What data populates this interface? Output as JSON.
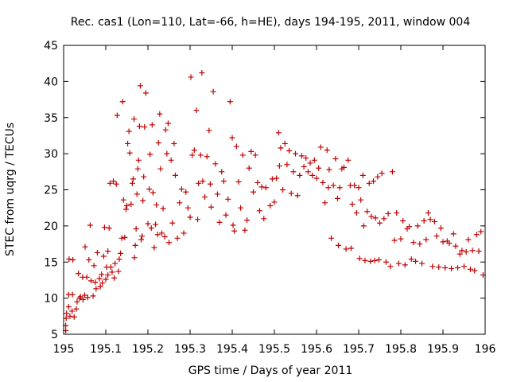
{
  "chart_data": {
    "type": "scatter",
    "title": "Rec. cas1 (Lon=110, Lat=-66, h=HE), days 194-195, 2011, window 004",
    "xlabel": "GPS time / Days of year 2011",
    "ylabel": "STEC from uqrg / TECUs",
    "xlim": [
      195,
      196
    ],
    "ylim": [
      5,
      45
    ],
    "xticks": [
      195,
      195.1,
      195.2,
      195.3,
      195.4,
      195.5,
      195.6,
      195.7,
      195.8,
      195.9,
      196
    ],
    "xtick_labels": [
      "195",
      "195.1",
      "195.2",
      "195.3",
      "195.4",
      "195.5",
      "195.6",
      "195.7",
      "195.8",
      "195.9",
      "196"
    ],
    "yticks": [
      5,
      10,
      15,
      20,
      25,
      30,
      35,
      40,
      45
    ],
    "ytick_labels": [
      "5",
      "10",
      "15",
      "20",
      "25",
      "30",
      "35",
      "40",
      "45"
    ],
    "marker_color": "#c00000",
    "series": [
      {
        "name": "STEC",
        "marker": "plus",
        "points": [
          [
            195.005,
            5.5
          ],
          [
            195.005,
            6.2
          ],
          [
            195.006,
            7.2
          ],
          [
            195.007,
            7.9
          ],
          [
            195.012,
            8.8
          ],
          [
            195.012,
            10.5
          ],
          [
            195.013,
            15.4
          ],
          [
            195.015,
            7.5
          ],
          [
            195.02,
            8.2
          ],
          [
            195.021,
            10.5
          ],
          [
            195.022,
            15.3
          ],
          [
            195.025,
            7.4
          ],
          [
            195.03,
            8.5
          ],
          [
            195.032,
            9.5
          ],
          [
            195.035,
            13.4
          ],
          [
            195.038,
            10.0
          ],
          [
            195.04,
            10.2
          ],
          [
            195.045,
            12.9
          ],
          [
            195.046,
            9.8
          ],
          [
            195.05,
            10.4
          ],
          [
            195.051,
            17.1
          ],
          [
            195.055,
            12.9
          ],
          [
            195.057,
            10.1
          ],
          [
            195.06,
            15.3
          ],
          [
            195.063,
            20.1
          ],
          [
            195.065,
            12.4
          ],
          [
            195.07,
            10.3
          ],
          [
            195.072,
            14.5
          ],
          [
            195.075,
            12.2
          ],
          [
            195.077,
            11.3
          ],
          [
            195.08,
            16.3
          ],
          [
            195.085,
            12.7
          ],
          [
            195.087,
            11.6
          ],
          [
            195.09,
            13.3
          ],
          [
            195.092,
            12.1
          ],
          [
            195.095,
            15.8
          ],
          [
            195.097,
            19.8
          ],
          [
            195.1,
            12.6
          ],
          [
            195.102,
            14.3
          ],
          [
            195.105,
            16.5
          ],
          [
            195.105,
            13.2
          ],
          [
            195.108,
            19.7
          ],
          [
            195.11,
            25.9
          ],
          [
            195.112,
            14.3
          ],
          [
            195.115,
            13.6
          ],
          [
            195.118,
            26.2
          ],
          [
            195.12,
            12.8
          ],
          [
            195.122,
            14.8
          ],
          [
            195.125,
            25.8
          ],
          [
            195.127,
            35.3
          ],
          [
            195.13,
            13.7
          ],
          [
            195.132,
            15.4
          ],
          [
            195.135,
            16.2
          ],
          [
            195.138,
            18.3
          ],
          [
            195.14,
            37.2
          ],
          [
            195.142,
            23.6
          ],
          [
            195.145,
            18.4
          ],
          [
            195.148,
            22.3
          ],
          [
            195.15,
            22.8
          ],
          [
            195.152,
            31.4
          ],
          [
            195.155,
            33.1
          ],
          [
            195.157,
            30.1
          ],
          [
            195.16,
            23.0
          ],
          [
            195.163,
            25.9
          ],
          [
            195.165,
            26.5
          ],
          [
            195.167,
            34.8
          ],
          [
            195.168,
            15.6
          ],
          [
            195.17,
            17.3
          ],
          [
            195.172,
            19.6
          ],
          [
            195.174,
            24.4
          ],
          [
            195.176,
            27.9
          ],
          [
            195.178,
            29.1
          ],
          [
            195.18,
            33.8
          ],
          [
            195.182,
            39.4
          ],
          [
            195.184,
            18.1
          ],
          [
            195.186,
            18.6
          ],
          [
            195.188,
            23.5
          ],
          [
            195.19,
            26.8
          ],
          [
            195.192,
            33.7
          ],
          [
            195.195,
            38.4
          ],
          [
            195.2,
            20.3
          ],
          [
            195.203,
            25.1
          ],
          [
            195.205,
            29.9
          ],
          [
            195.208,
            19.7
          ],
          [
            195.21,
            34.0
          ],
          [
            195.212,
            24.6
          ],
          [
            195.215,
            17.0
          ],
          [
            195.218,
            20.2
          ],
          [
            195.22,
            22.9
          ],
          [
            195.223,
            18.8
          ],
          [
            195.225,
            31.5
          ],
          [
            195.228,
            35.5
          ],
          [
            195.23,
            27.9
          ],
          [
            195.233,
            19.0
          ],
          [
            195.236,
            22.4
          ],
          [
            195.24,
            18.5
          ],
          [
            195.242,
            33.3
          ],
          [
            195.245,
            30.0
          ],
          [
            195.248,
            34.2
          ],
          [
            195.25,
            17.7
          ],
          [
            195.255,
            29.1
          ],
          [
            195.258,
            20.4
          ],
          [
            195.262,
            31.4
          ],
          [
            195.265,
            27.0
          ],
          [
            195.27,
            18.3
          ],
          [
            195.275,
            23.2
          ],
          [
            195.28,
            25.1
          ],
          [
            195.285,
            19.0
          ],
          [
            195.29,
            24.7
          ],
          [
            195.295,
            22.5
          ],
          [
            195.3,
            21.2
          ],
          [
            195.302,
            40.6
          ],
          [
            195.305,
            29.8
          ],
          [
            195.31,
            30.5
          ],
          [
            195.315,
            36.0
          ],
          [
            195.318,
            20.9
          ],
          [
            195.32,
            25.9
          ],
          [
            195.325,
            29.8
          ],
          [
            195.328,
            41.2
          ],
          [
            195.33,
            26.2
          ],
          [
            195.335,
            24.0
          ],
          [
            195.34,
            29.6
          ],
          [
            195.345,
            33.2
          ],
          [
            195.348,
            25.8
          ],
          [
            195.35,
            22.6
          ],
          [
            195.355,
            38.6
          ],
          [
            195.36,
            28.6
          ],
          [
            195.365,
            24.4
          ],
          [
            195.37,
            20.5
          ],
          [
            195.375,
            27.5
          ],
          [
            195.38,
            26.2
          ],
          [
            195.385,
            21.5
          ],
          [
            195.39,
            23.7
          ],
          [
            195.395,
            37.2
          ],
          [
            195.4,
            32.2
          ],
          [
            195.402,
            20.1
          ],
          [
            195.405,
            19.3
          ],
          [
            195.41,
            31.0
          ],
          [
            195.415,
            26.1
          ],
          [
            195.42,
            22.5
          ],
          [
            195.425,
            29.8
          ],
          [
            195.43,
            19.4
          ],
          [
            195.435,
            20.8
          ],
          [
            195.44,
            28.0
          ],
          [
            195.445,
            30.3
          ],
          [
            195.45,
            24.7
          ],
          [
            195.455,
            29.8
          ],
          [
            195.46,
            26.0
          ],
          [
            195.465,
            22.1
          ],
          [
            195.47,
            25.4
          ],
          [
            195.475,
            21.0
          ],
          [
            195.48,
            25.3
          ],
          [
            195.49,
            22.8
          ],
          [
            195.495,
            26.5
          ],
          [
            195.5,
            23.3
          ],
          [
            195.505,
            26.6
          ],
          [
            195.51,
            32.9
          ],
          [
            195.512,
            28.3
          ],
          [
            195.515,
            30.8
          ],
          [
            195.52,
            25.0
          ],
          [
            195.525,
            31.4
          ],
          [
            195.53,
            28.5
          ],
          [
            195.535,
            30.4
          ],
          [
            195.54,
            24.5
          ],
          [
            195.545,
            27.5
          ],
          [
            195.55,
            30.0
          ],
          [
            195.555,
            24.2
          ],
          [
            195.56,
            27.0
          ],
          [
            195.565,
            29.7
          ],
          [
            195.57,
            28.2
          ],
          [
            195.575,
            29.4
          ],
          [
            195.58,
            27.5
          ],
          [
            195.585,
            28.7
          ],
          [
            195.59,
            27.0
          ],
          [
            195.595,
            29.1
          ],
          [
            195.6,
            26.6
          ],
          [
            195.605,
            28.0
          ],
          [
            195.61,
            30.9
          ],
          [
            195.615,
            26.0
          ],
          [
            195.62,
            23.2
          ],
          [
            195.625,
            30.5
          ],
          [
            195.628,
            25.3
          ],
          [
            195.63,
            27.8
          ],
          [
            195.635,
            18.3
          ],
          [
            195.64,
            25.6
          ],
          [
            195.645,
            29.3
          ],
          [
            195.65,
            23.8
          ],
          [
            195.652,
            17.3
          ],
          [
            195.655,
            25.3
          ],
          [
            195.66,
            27.9
          ],
          [
            195.665,
            28.1
          ],
          [
            195.67,
            16.8
          ],
          [
            195.675,
            29.1
          ],
          [
            195.68,
            25.6
          ],
          [
            195.682,
            16.9
          ],
          [
            195.685,
            23.0
          ],
          [
            195.69,
            25.6
          ],
          [
            195.695,
            21.8
          ],
          [
            195.7,
            25.3
          ],
          [
            195.702,
            15.5
          ],
          [
            195.705,
            23.6
          ],
          [
            195.71,
            27.0
          ],
          [
            195.712,
            20.0
          ],
          [
            195.715,
            15.2
          ],
          [
            195.72,
            22.0
          ],
          [
            195.725,
            25.9
          ],
          [
            195.728,
            15.1
          ],
          [
            195.73,
            21.3
          ],
          [
            195.735,
            26.2
          ],
          [
            195.738,
            15.2
          ],
          [
            195.74,
            21.1
          ],
          [
            195.745,
            26.8
          ],
          [
            195.748,
            15.3
          ],
          [
            195.75,
            20.4
          ],
          [
            195.755,
            27.3
          ],
          [
            195.76,
            21.0
          ],
          [
            195.765,
            15.0
          ],
          [
            195.77,
            21.7
          ],
          [
            195.775,
            14.4
          ],
          [
            195.78,
            27.5
          ],
          [
            195.785,
            18.0
          ],
          [
            195.79,
            21.8
          ],
          [
            195.795,
            14.8
          ],
          [
            195.8,
            18.2
          ],
          [
            195.805,
            20.7
          ],
          [
            195.81,
            14.6
          ],
          [
            195.815,
            19.6
          ],
          [
            195.82,
            19.9
          ],
          [
            195.825,
            15.4
          ],
          [
            195.83,
            17.7
          ],
          [
            195.835,
            15.1
          ],
          [
            195.84,
            20.0
          ],
          [
            195.845,
            17.5
          ],
          [
            195.85,
            14.8
          ],
          [
            195.855,
            20.7
          ],
          [
            195.86,
            18.1
          ],
          [
            195.865,
            21.8
          ],
          [
            195.87,
            20.9
          ],
          [
            195.875,
            14.4
          ],
          [
            195.88,
            20.6
          ],
          [
            195.885,
            18.6
          ],
          [
            195.89,
            14.3
          ],
          [
            195.895,
            19.7
          ],
          [
            195.9,
            17.8
          ],
          [
            195.905,
            14.2
          ],
          [
            195.91,
            17.9
          ],
          [
            195.915,
            17.6
          ],
          [
            195.92,
            14.1
          ],
          [
            195.925,
            18.9
          ],
          [
            195.93,
            17.2
          ],
          [
            195.935,
            14.2
          ],
          [
            195.94,
            16.1
          ],
          [
            195.945,
            16.6
          ],
          [
            195.95,
            14.4
          ],
          [
            195.955,
            16.4
          ],
          [
            195.96,
            18.1
          ],
          [
            195.965,
            14.0
          ],
          [
            195.97,
            16.6
          ],
          [
            195.975,
            13.8
          ],
          [
            195.98,
            18.8
          ],
          [
            195.985,
            16.5
          ],
          [
            195.99,
            19.2
          ],
          [
            195.995,
            13.2
          ]
        ]
      }
    ]
  }
}
